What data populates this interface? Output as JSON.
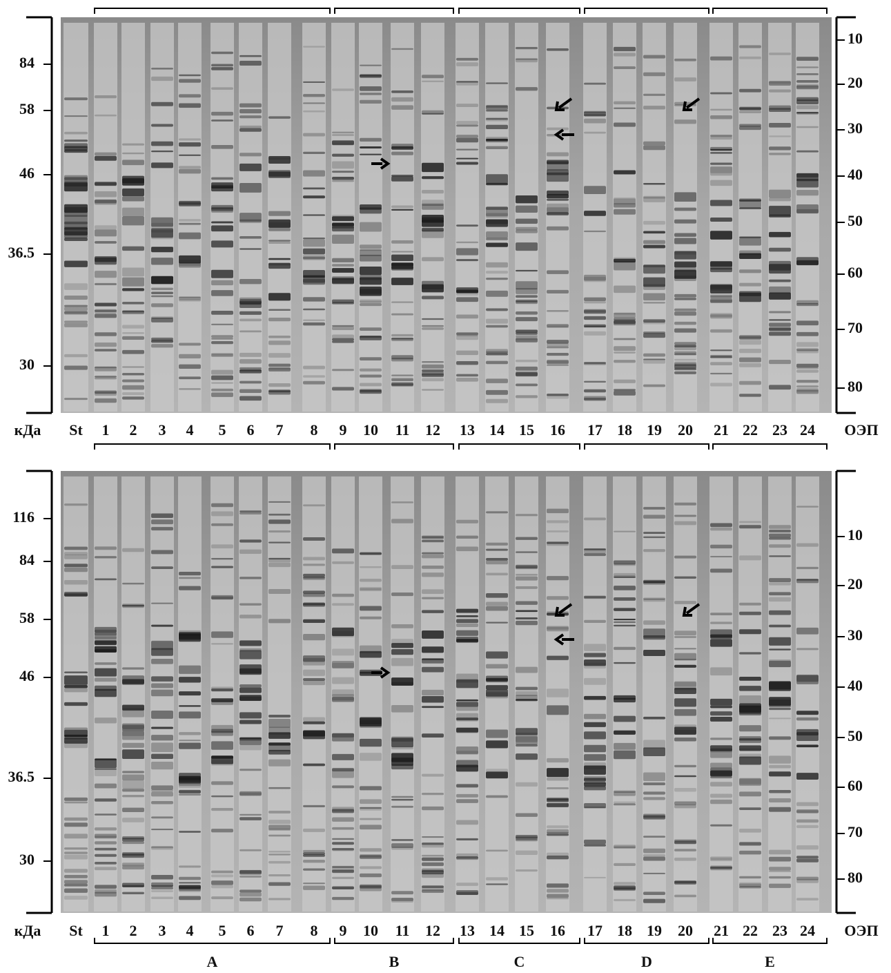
{
  "panels": [
    {
      "left_labels": [
        "84",
        "58",
        "46",
        "36.5",
        "30"
      ],
      "right_labels": [
        "10",
        "20",
        "30",
        "40",
        "50",
        "60",
        "70",
        "80"
      ],
      "lane_labels": [
        "кДа",
        "St",
        "1",
        "2",
        "3",
        "4",
        "5",
        "6",
        "7",
        "8",
        "9",
        "10",
        "11",
        "12",
        "13",
        "14",
        "15",
        "16",
        "17",
        "18",
        "19",
        "20",
        "21",
        "22",
        "23",
        "24",
        "ОЭП"
      ]
    },
    {
      "left_labels": [
        "116",
        "84",
        "58",
        "46",
        "36.5",
        "30"
      ],
      "right_labels": [
        "10",
        "20",
        "30",
        "40",
        "50",
        "60",
        "70",
        "80"
      ],
      "lane_labels": [
        "кДа",
        "St",
        "1",
        "2",
        "3",
        "4",
        "5",
        "6",
        "7",
        "8",
        "9",
        "10",
        "11",
        "12",
        "13",
        "14",
        "15",
        "16",
        "17",
        "18",
        "19",
        "20",
        "21",
        "22",
        "23",
        "24",
        "ОЭП"
      ]
    }
  ],
  "groups": [
    "A",
    "B",
    "C",
    "D",
    "E"
  ]
}
